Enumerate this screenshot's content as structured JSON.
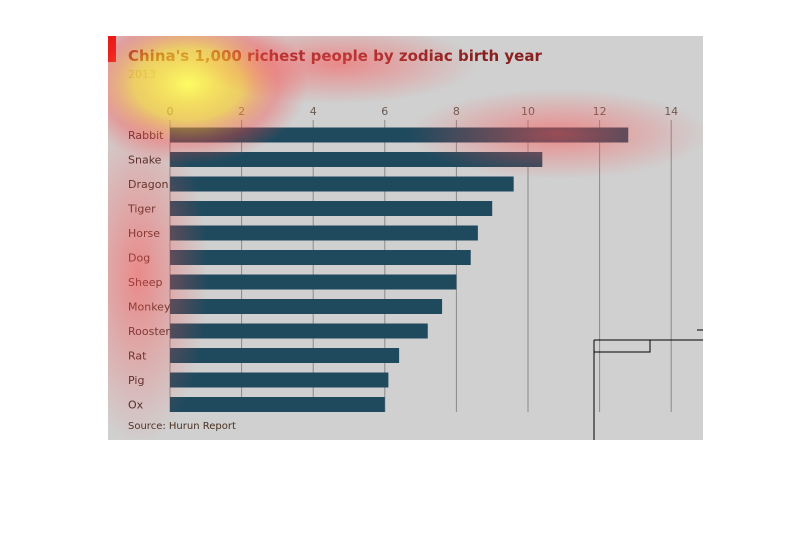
{
  "chart_data": {
    "type": "bar",
    "orientation": "horizontal",
    "title": "China's 1,000 richest people by zodiac birth year",
    "subtitle": "2013",
    "source": "Source: Hurun Report",
    "categories": [
      "Rabbit",
      "Snake",
      "Dragon",
      "Tiger",
      "Horse",
      "Dog",
      "Sheep",
      "Monkey",
      "Rooster",
      "Rat",
      "Pig",
      "Ox"
    ],
    "values": [
      12.8,
      10.4,
      9.6,
      9.0,
      8.6,
      8.4,
      8.0,
      7.6,
      7.2,
      6.4,
      6.1,
      6.0
    ],
    "xticks": [
      "0",
      "2",
      "4",
      "6",
      "8",
      "10",
      "12",
      "14"
    ],
    "xlim": [
      0,
      14
    ],
    "grid": true,
    "bar_color": "#1f4a5e",
    "accent_color": "#e3120b",
    "background_color": "#d0d0d0"
  }
}
